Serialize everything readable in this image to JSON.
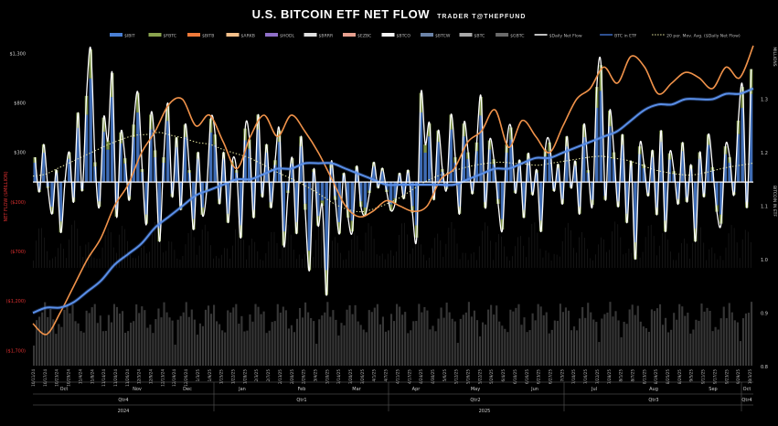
{
  "header": {
    "title": "U.S. BITCOIN ETF NET FLOW",
    "subtitle": "TRADER T@THEPFUND"
  },
  "colors": {
    "background": "#000000",
    "bars_ibit": "#4a7fd4",
    "bars_fbtc": "#8aa34e",
    "btc_price": "#3d6bc0",
    "ethbtc_line": "#f0924a",
    "daily_net_flow": "#ffffff",
    "moving_avg": "#e8e8a0",
    "neg_axis_label": "#e03030",
    "zero_line": "#ffffff"
  },
  "chart_data": {
    "type": "bar",
    "title": "U.S. BITCOIN ETF NET FLOW",
    "ylabel_left": "NET FLOW ($MILLION)",
    "ylabel_right_1": "MILLIONS",
    "ylabel_right_2": "BITCOIN IN ETF",
    "y_left_ticks": [
      "$1,300",
      "$800",
      "$300",
      "($200)",
      "($700)",
      "($1,200)",
      "($1,700)"
    ],
    "y_left_tick_values": [
      1300,
      800,
      300,
      -200,
      -700,
      -1200,
      -1700
    ],
    "y_left_range": [
      -1900,
      1450
    ],
    "y_right_ticks": [
      "1.3",
      "1.2",
      "1.1",
      "1.0",
      "0.9",
      "0.8"
    ],
    "y_right_tick_values": [
      1.3,
      1.2,
      1.1,
      1.0,
      0.9,
      0.8
    ],
    "legend": [
      {
        "label": "$IBIT",
        "color": "#4a7fd4",
        "kind": "bar"
      },
      {
        "label": "$FBTC",
        "color": "#8aa34e",
        "kind": "bar"
      },
      {
        "label": "$BITB",
        "color": "#f07a3a",
        "kind": "bar"
      },
      {
        "label": "$ARKB",
        "color": "#f6c08a",
        "kind": "bar"
      },
      {
        "label": "$HODL",
        "color": "#8f6fc8",
        "kind": "bar"
      },
      {
        "label": "$BRRR",
        "color": "#e0e0e0",
        "kind": "bar"
      },
      {
        "label": "$EZBC",
        "color": "#e7a08f",
        "kind": "bar"
      },
      {
        "label": "$BTCO",
        "color": "#f4f4f4",
        "kind": "bar"
      },
      {
        "label": "$BTCW",
        "color": "#6b83a8",
        "kind": "bar"
      },
      {
        "label": "$BTC",
        "color": "#a9a9a9",
        "kind": "bar"
      },
      {
        "label": "$GBTC",
        "color": "#6b6b6b",
        "kind": "bar"
      },
      {
        "label": "$Daily Net Flow",
        "color": "#ffffff",
        "kind": "line"
      },
      {
        "label": "BTC in ETF",
        "color": "#3d6bc0",
        "kind": "line"
      },
      {
        "label": "20 per. Mov. Avg. ($Daily Net Flow)",
        "color": "#e8e8a0",
        "kind": "dotted"
      }
    ],
    "x_date_labels": [
      "10/11/24",
      "10/17/24",
      "10/23/24",
      "10/29/24",
      "11/4/24",
      "11/8/24",
      "11/14/24",
      "11/20/24",
      "11/26/24",
      "12/3/24",
      "12/9/24",
      "12/13/24",
      "12/19/24",
      "12/26/24",
      "1/3/25",
      "1/9/25",
      "1/15/25",
      "1/22/25",
      "1/28/25",
      "2/3/25",
      "2/7/25",
      "2/13/25",
      "2/20/25",
      "2/26/25",
      "3/4/25",
      "3/10/25",
      "3/14/25",
      "3/20/25",
      "3/26/25",
      "4/1/25",
      "4/7/25",
      "4/11/25",
      "4/17/25",
      "4/24/25",
      "4/30/25",
      "5/6/25",
      "5/12/25",
      "5/16/25",
      "5/22/25",
      "5/29/25",
      "6/4/25",
      "6/10/25",
      "6/16/25",
      "6/23/25",
      "6/27/25",
      "7/3/25",
      "7/10/25",
      "7/16/25",
      "7/22/25",
      "7/28/25",
      "8/1/25",
      "8/7/25",
      "8/13/25",
      "8/19/25",
      "8/25/25",
      "8/29/25",
      "9/5/25",
      "9/11/25",
      "9/17/25",
      "9/23/25",
      "9/29/25",
      "10/3/25"
    ],
    "months": [
      "Oct",
      "Nov",
      "Dec",
      "Jan",
      "Feb",
      "Mar",
      "Apr",
      "May",
      "Jun",
      "Jul",
      "Aug",
      "Sep",
      "Oct"
    ],
    "quarters": [
      "Qtr4",
      "Qtr1",
      "Qtr2",
      "Qtr3",
      "Qtr4"
    ],
    "years": [
      "2024",
      "2025"
    ],
    "daily_net_flow": [
      250,
      -100,
      380,
      -60,
      -320,
      120,
      -510,
      20,
      300,
      -200,
      700,
      -90,
      870,
      1340,
      200,
      -250,
      650,
      420,
      1100,
      -350,
      500,
      240,
      -180,
      580,
      900,
      130,
      -420,
      680,
      320,
      -600,
      250,
      790,
      -150,
      450,
      -280,
      580,
      120,
      -480,
      300,
      -330,
      -90,
      640,
      480,
      -220,
      300,
      -410,
      210,
      120,
      -560,
      540,
      430,
      -360,
      680,
      -150,
      380,
      -260,
      220,
      520,
      -640,
      -110,
      240,
      -520,
      460,
      -280,
      -890,
      130,
      -440,
      -240,
      -1140,
      180,
      -180,
      -520,
      90,
      -360,
      -500,
      160,
      -250,
      -330,
      -110,
      200,
      -60,
      140,
      -100,
      -290,
      -210,
      90,
      -170,
      120,
      -310,
      -560,
      900,
      380,
      590,
      -180,
      520,
      130,
      -70,
      680,
      250,
      -320,
      590,
      300,
      -120,
      400,
      860,
      -260,
      420,
      230,
      -220,
      -480,
      380,
      550,
      -110,
      220,
      -360,
      290,
      -130,
      120,
      -500,
      330,
      400,
      -90,
      180,
      -220,
      460,
      -60,
      210,
      -320,
      580,
      120,
      -230,
      960,
      1180,
      -180,
      720,
      300,
      -250,
      480,
      -410,
      210,
      -780,
      360,
      180,
      -140,
      320,
      -330,
      520,
      -500,
      290,
      110,
      -220,
      400,
      -200,
      170,
      -600,
      300,
      -150,
      480,
      150,
      -300,
      -420,
      360,
      250,
      -130,
      620,
      960,
      -260,
      1140
    ],
    "btc_in_etf_millions": [
      0.9,
      0.91,
      0.91,
      0.92,
      0.94,
      0.96,
      0.99,
      1.01,
      1.03,
      1.06,
      1.08,
      1.1,
      1.12,
      1.13,
      1.14,
      1.15,
      1.15,
      1.16,
      1.17,
      1.17,
      1.18,
      1.18,
      1.18,
      1.17,
      1.16,
      1.15,
      1.14,
      1.14,
      1.14,
      1.14,
      1.14,
      1.14,
      1.15,
      1.16,
      1.17,
      1.17,
      1.18,
      1.19,
      1.19,
      1.2,
      1.21,
      1.22,
      1.23,
      1.24,
      1.26,
      1.28,
      1.29,
      1.29,
      1.3,
      1.3,
      1.3,
      1.31,
      1.31,
      1.32
    ],
    "ethbtc_line_millions": [
      0.88,
      0.86,
      0.9,
      0.95,
      1.0,
      1.04,
      1.1,
      1.14,
      1.2,
      1.24,
      1.29,
      1.3,
      1.25,
      1.27,
      1.22,
      1.17,
      1.23,
      1.27,
      1.23,
      1.27,
      1.24,
      1.2,
      1.15,
      1.1,
      1.08,
      1.09,
      1.11,
      1.1,
      1.09,
      1.1,
      1.15,
      1.17,
      1.22,
      1.24,
      1.28,
      1.21,
      1.26,
      1.23,
      1.2,
      1.25,
      1.3,
      1.32,
      1.36,
      1.33,
      1.38,
      1.36,
      1.31,
      1.33,
      1.35,
      1.34,
      1.32,
      1.36,
      1.34,
      1.4
    ],
    "moving_avg": [
      60,
      80,
      140,
      200,
      260,
      320,
      380,
      430,
      470,
      480,
      500,
      470,
      440,
      400,
      380,
      330,
      290,
      250,
      190,
      120,
      60,
      0,
      -70,
      -150,
      -230,
      -280,
      -300,
      -270,
      -220,
      -160,
      -80,
      0,
      60,
      100,
      140,
      170,
      190,
      200,
      190,
      180,
      170,
      190,
      210,
      230,
      250,
      260,
      240,
      220,
      180,
      130,
      100,
      80,
      70,
      90,
      120,
      150,
      170,
      190
    ]
  }
}
